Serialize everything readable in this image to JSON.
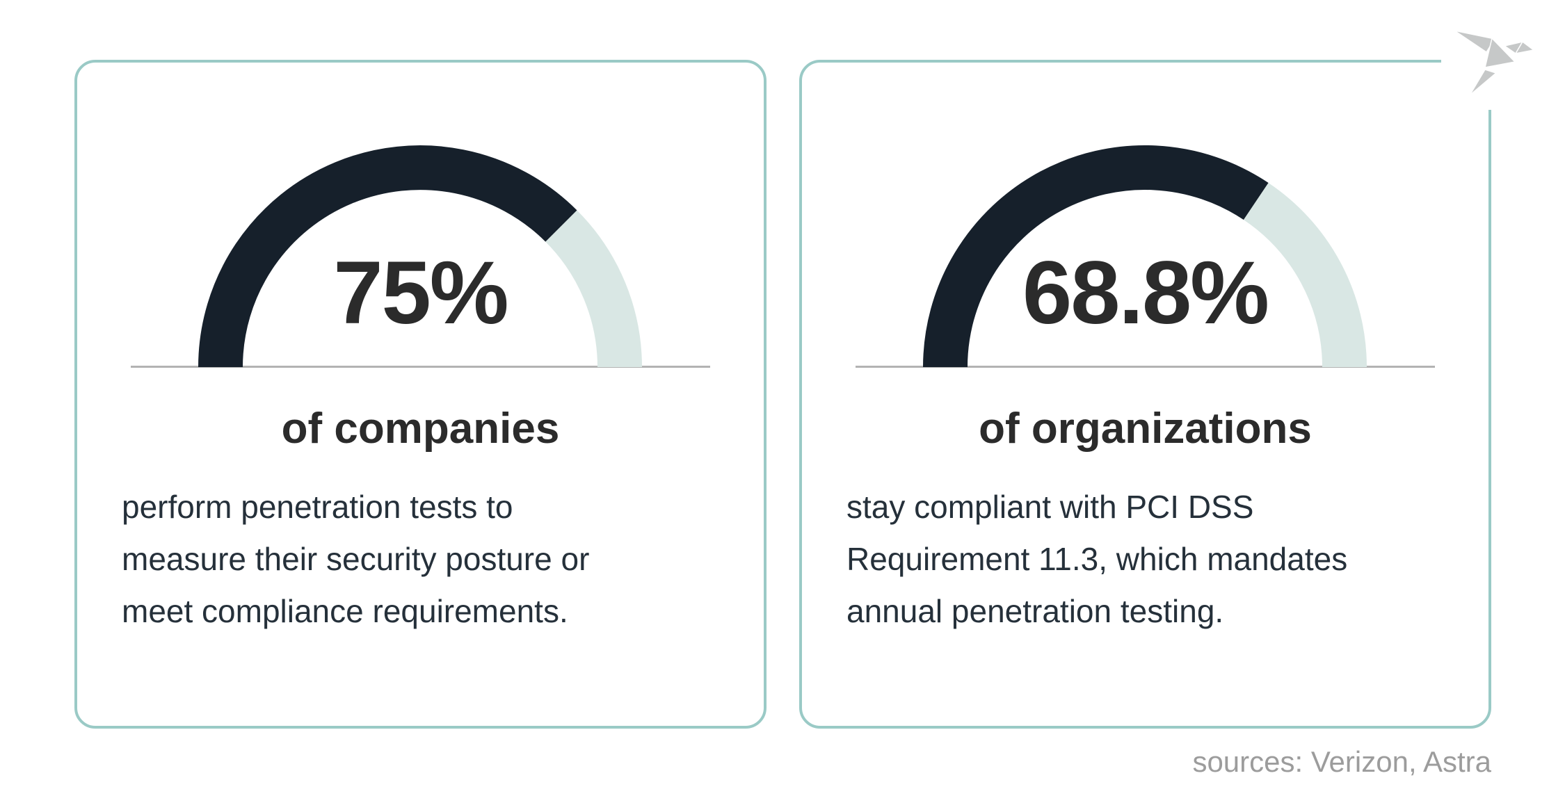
{
  "theme": {
    "card_border_color": "#9acac6",
    "arc_filled_color": "#16202b",
    "arc_remainder_color": "#d9e7e4",
    "baseline_color": "#b3b3b3",
    "heading_color": "#2b2b2b",
    "body_text_color": "#25303a",
    "sources_color": "#9c9c9c",
    "logo_color": "#c6c8c8"
  },
  "cards": [
    {
      "percent_label": "75%",
      "percent": 75,
      "heading": "of companies",
      "body_lines": [
        "perform penetration tests to",
        "measure their security posture or",
        "meet compliance requirements."
      ]
    },
    {
      "percent_label": "68.8%",
      "percent": 68.8,
      "heading": "of organizations",
      "body_lines": [
        "stay compliant with PCI DSS",
        "Requirement 11.3, which mandates",
        "annual penetration testing."
      ]
    }
  ],
  "footer": {
    "sources_text": "sources: Verizon, Astra"
  },
  "logo": {
    "name": "origami-bird"
  },
  "chart_data": [
    {
      "type": "gauge",
      "value": 75,
      "max": 100,
      "arc_span_degrees": 180,
      "label": "75%",
      "caption": "of companies",
      "description": "perform penetration tests to measure their security posture or meet compliance requirements.",
      "filled_color": "#16202b",
      "remainder_color": "#d9e7e4"
    },
    {
      "type": "gauge",
      "value": 68.8,
      "max": 100,
      "arc_span_degrees": 180,
      "label": "68.8%",
      "caption": "of organizations",
      "description": "stay compliant with PCI DSS Requirement 11.3, which mandates annual penetration testing.",
      "filled_color": "#16202b",
      "remainder_color": "#d9e7e4"
    }
  ]
}
